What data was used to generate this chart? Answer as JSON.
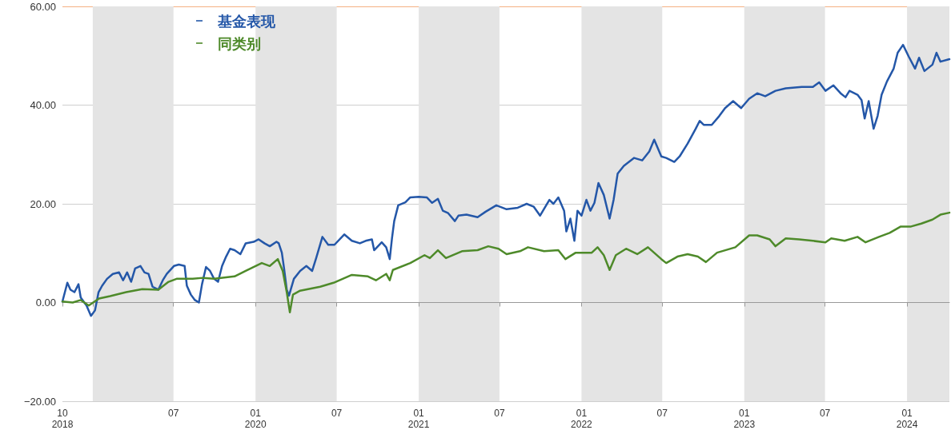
{
  "chart_data": {
    "type": "line",
    "marker": "none",
    "line_style": "solid",
    "grid": "y",
    "legend": "top left",
    "xlim": [
      "2018-10-25",
      "2024-04-05"
    ],
    "xticks": [
      {
        "value": "2018-10-25",
        "label": "10\n2018"
      },
      {
        "value": "2019-01-01",
        "label": null
      },
      {
        "value": "2019-07-01",
        "label": "07"
      },
      {
        "value": "2020-01-01",
        "label": "01\n2020"
      },
      {
        "value": "2020-07-01",
        "label": "07"
      },
      {
        "value": "2021-01-01",
        "label": "01\n2021"
      },
      {
        "value": "2021-07-01",
        "label": "07"
      },
      {
        "value": "2022-01-01",
        "label": "01\n2022"
      },
      {
        "value": "2022-07-01",
        "label": "07"
      },
      {
        "value": "2023-01-01",
        "label": "01\n2023"
      },
      {
        "value": "2023-07-01",
        "label": "07"
      },
      {
        "value": "2024-01-01",
        "label": "01\n2024"
      }
    ],
    "ylim": [
      -20,
      60
    ],
    "yticks": [
      {
        "value": -20,
        "label": "−20.00"
      },
      {
        "value": 0,
        "label": "0.00"
      },
      {
        "value": 20,
        "label": "20.00"
      },
      {
        "value": 40,
        "label": "40.00"
      },
      {
        "value": 60,
        "label": "60.00"
      }
    ],
    "bands": [
      {
        "axis": "x",
        "from": "2019-01-01",
        "to": "2019-07-01",
        "label": null,
        "color": "#e4e4e4"
      },
      {
        "axis": "x",
        "from": "2020-01-01",
        "to": "2020-07-01",
        "label": null,
        "color": "#e4e4e4"
      },
      {
        "axis": "x",
        "from": "2021-01-01",
        "to": "2021-07-01",
        "label": null,
        "color": "#e4e4e4"
      },
      {
        "axis": "x",
        "from": "2022-01-01",
        "to": "2022-07-01",
        "label": null,
        "color": "#e4e4e4"
      },
      {
        "axis": "x",
        "from": "2023-01-01",
        "to": "2023-07-01",
        "label": null,
        "color": "#e4e4e4"
      },
      {
        "axis": "x",
        "from": "2024-01-01",
        "to": "2024-04-05",
        "label": null,
        "color": "#e4e4e4"
      }
    ],
    "series": [
      {
        "name": "基金表现",
        "color": "#2457a8",
        "x": [
          "2018-10-25",
          "2018-11-05",
          "2018-11-12",
          "2018-11-21",
          "2018-11-30",
          "2018-12-05",
          "2018-12-18",
          "2018-12-28",
          "2019-01-06",
          "2019-01-14",
          "2019-01-22",
          "2019-02-02",
          "2019-02-15",
          "2019-03-01",
          "2019-03-10",
          "2019-03-19",
          "2019-03-28",
          "2019-04-06",
          "2019-04-18",
          "2019-04-27",
          "2019-05-06",
          "2019-05-15",
          "2019-05-28",
          "2019-06-07",
          "2019-06-16",
          "2019-07-02",
          "2019-07-13",
          "2019-07-26",
          "2019-07-31",
          "2019-08-09",
          "2019-08-18",
          "2019-08-27",
          "2019-09-03",
          "2019-09-12",
          "2019-09-21",
          "2019-09-30",
          "2019-10-09",
          "2019-10-18",
          "2019-10-27",
          "2019-11-05",
          "2019-11-15",
          "2019-11-28",
          "2019-12-10",
          "2019-12-28",
          "2020-01-08",
          "2020-01-21",
          "2020-02-02",
          "2020-02-17",
          "2020-02-22",
          "2020-02-29",
          "2020-03-05",
          "2020-03-11",
          "2020-03-16",
          "2020-03-27",
          "2020-04-10",
          "2020-04-24",
          "2020-05-07",
          "2020-05-16",
          "2020-05-30",
          "2020-06-12",
          "2020-06-26",
          "2020-07-18",
          "2020-08-04",
          "2020-08-22",
          "2020-09-04",
          "2020-09-18",
          "2020-09-23",
          "2020-10-10",
          "2020-10-20",
          "2020-10-28",
          "2020-11-02",
          "2020-11-07",
          "2020-11-16",
          "2020-12-02",
          "2020-12-13",
          "2021-01-01",
          "2021-01-19",
          "2021-01-31",
          "2021-02-13",
          "2021-02-24",
          "2021-03-08",
          "2021-03-23",
          "2021-03-31",
          "2021-04-18",
          "2021-05-13",
          "2021-05-31",
          "2021-06-24",
          "2021-07-17",
          "2021-08-11",
          "2021-08-31",
          "2021-09-16",
          "2021-09-30",
          "2021-10-21",
          "2021-10-30",
          "2021-11-10",
          "2021-11-23",
          "2021-11-28",
          "2021-12-07",
          "2021-12-16",
          "2021-12-23",
          "2022-01-01",
          "2022-01-12",
          "2022-01-21",
          "2022-01-30",
          "2022-02-08",
          "2022-02-20",
          "2022-03-05",
          "2022-03-14",
          "2022-03-23",
          "2022-04-06",
          "2022-04-29",
          "2022-05-17",
          "2022-06-02",
          "2022-06-13",
          "2022-06-29",
          "2022-07-10",
          "2022-07-28",
          "2022-08-09",
          "2022-08-27",
          "2022-09-14",
          "2022-09-23",
          "2022-10-02",
          "2022-10-20",
          "2022-11-06",
          "2022-11-19",
          "2022-12-07",
          "2022-12-25",
          "2023-01-12",
          "2023-01-30",
          "2023-02-17",
          "2023-03-12",
          "2023-04-04",
          "2023-05-10",
          "2023-06-04",
          "2023-06-18",
          "2023-07-02",
          "2023-07-20",
          "2023-08-05",
          "2023-08-16",
          "2023-08-25",
          "2023-09-12",
          "2023-09-21",
          "2023-09-28",
          "2023-10-07",
          "2023-10-18",
          "2023-10-27",
          "2023-11-05",
          "2023-11-17",
          "2023-12-02",
          "2023-12-11",
          "2023-12-23",
          "2024-01-05",
          "2024-01-19",
          "2024-01-28",
          "2024-02-09",
          "2024-02-27",
          "2024-03-07",
          "2024-03-16",
          "2024-04-05"
        ],
        "values": [
          0.2,
          4.0,
          2.6,
          2.1,
          3.7,
          1.0,
          -0.6,
          -2.7,
          -1.6,
          2.1,
          3.4,
          4.8,
          5.8,
          6.1,
          4.5,
          6.1,
          4.2,
          6.9,
          7.4,
          6.1,
          5.8,
          3.2,
          2.6,
          4.5,
          5.8,
          7.4,
          7.7,
          7.4,
          3.4,
          1.6,
          0.5,
          0.0,
          3.7,
          7.2,
          6.4,
          4.8,
          4.2,
          7.4,
          9.3,
          10.9,
          10.6,
          9.8,
          12.0,
          12.3,
          12.8,
          12.0,
          11.4,
          12.3,
          12.0,
          10.1,
          6.9,
          2.6,
          1.4,
          4.8,
          6.4,
          7.4,
          6.4,
          9.0,
          13.3,
          11.7,
          11.7,
          13.8,
          12.5,
          12.0,
          12.5,
          12.8,
          10.6,
          12.2,
          11.2,
          8.8,
          13.0,
          16.5,
          19.7,
          20.3,
          21.3,
          21.4,
          21.3,
          20.2,
          21.0,
          18.6,
          18.1,
          16.5,
          17.6,
          17.8,
          17.3,
          18.4,
          19.7,
          18.9,
          19.2,
          20.0,
          19.4,
          17.6,
          20.8,
          20.0,
          21.3,
          18.6,
          14.4,
          17.0,
          12.5,
          18.6,
          17.6,
          20.8,
          18.6,
          20.2,
          24.2,
          21.8,
          17.0,
          20.8,
          26.1,
          27.7,
          29.3,
          28.8,
          30.6,
          33.0,
          29.6,
          29.3,
          28.5,
          29.6,
          32.2,
          35.2,
          36.8,
          36.0,
          36.0,
          37.8,
          39.4,
          40.8,
          39.4,
          41.3,
          42.4,
          41.8,
          42.9,
          43.4,
          43.7,
          43.7,
          44.6,
          42.9,
          44.0,
          42.4,
          41.6,
          42.9,
          42.1,
          41.0,
          37.3,
          40.8,
          35.2,
          37.8,
          42.1,
          44.8,
          47.4,
          50.6,
          52.2,
          49.8,
          47.4,
          49.6,
          46.9,
          48.2,
          50.6,
          48.8,
          49.3
        ]
      },
      {
        "name": "同类别",
        "color": "#4e8a2a",
        "x": [
          "2018-10-25",
          "2018-11-17",
          "2018-12-05",
          "2018-12-23",
          "2019-01-15",
          "2019-02-09",
          "2019-03-17",
          "2019-04-22",
          "2019-05-28",
          "2019-06-20",
          "2019-07-08",
          "2019-08-13",
          "2019-09-05",
          "2019-09-30",
          "2019-11-15",
          "2019-12-10",
          "2020-01-15",
          "2020-02-02",
          "2020-02-20",
          "2020-03-02",
          "2020-03-11",
          "2020-03-18",
          "2020-03-25",
          "2020-04-10",
          "2020-05-25",
          "2020-06-24",
          "2020-08-04",
          "2020-09-09",
          "2020-09-27",
          "2020-10-20",
          "2020-10-28",
          "2020-11-04",
          "2020-12-13",
          "2021-01-14",
          "2021-01-26",
          "2021-02-13",
          "2021-03-03",
          "2021-04-08",
          "2021-05-13",
          "2021-06-06",
          "2021-06-29",
          "2021-07-17",
          "2021-08-16",
          "2021-09-03",
          "2021-10-09",
          "2021-11-10",
          "2021-11-26",
          "2021-12-19",
          "2022-01-24",
          "2022-02-06",
          "2022-02-20",
          "2022-03-05",
          "2022-03-19",
          "2022-04-11",
          "2022-05-06",
          "2022-05-30",
          "2022-06-29",
          "2022-07-10",
          "2022-08-04",
          "2022-08-27",
          "2022-09-19",
          "2022-10-07",
          "2022-11-01",
          "2022-12-12",
          "2023-01-12",
          "2023-01-30",
          "2023-02-27",
          "2023-03-12",
          "2023-04-04",
          "2023-05-04",
          "2023-06-04",
          "2023-07-02",
          "2023-07-15",
          "2023-08-14",
          "2023-09-12",
          "2023-09-30",
          "2023-10-30",
          "2023-11-23",
          "2023-12-18",
          "2024-01-10",
          "2024-02-02",
          "2024-02-27",
          "2024-03-16",
          "2024-04-05"
        ],
        "values": [
          0.2,
          0.0,
          0.5,
          -0.6,
          0.8,
          1.3,
          2.1,
          2.7,
          2.6,
          4.2,
          4.8,
          4.8,
          5.0,
          4.8,
          5.3,
          6.4,
          8.0,
          7.4,
          8.8,
          6.4,
          2.1,
          -2.0,
          1.6,
          2.4,
          3.2,
          4.0,
          5.6,
          5.3,
          4.5,
          5.8,
          4.5,
          6.6,
          8.0,
          9.6,
          9.0,
          10.6,
          9.0,
          10.4,
          10.6,
          11.4,
          10.9,
          9.8,
          10.4,
          11.2,
          10.4,
          10.6,
          8.8,
          10.1,
          10.1,
          11.2,
          9.6,
          6.6,
          9.6,
          10.9,
          9.8,
          11.2,
          8.8,
          8.0,
          9.3,
          9.8,
          9.3,
          8.2,
          10.1,
          11.2,
          13.6,
          13.6,
          12.8,
          11.4,
          13.0,
          12.8,
          12.5,
          12.2,
          13.0,
          12.5,
          13.3,
          12.2,
          13.3,
          14.1,
          15.4,
          15.4,
          16.0,
          16.8,
          17.8,
          18.2
        ]
      }
    ]
  }
}
